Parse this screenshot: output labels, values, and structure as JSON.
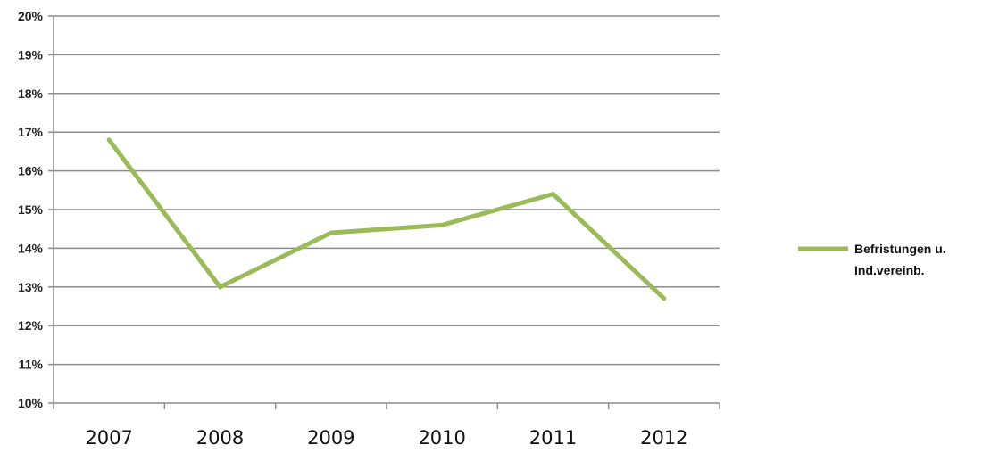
{
  "chart_data": {
    "type": "line",
    "title": "",
    "xlabel": "",
    "ylabel": "",
    "categories": [
      "2007",
      "2008",
      "2009",
      "2010",
      "2011",
      "2012"
    ],
    "series": [
      {
        "name": "Befristungen u. Ind.vereinb.",
        "legend_lines": [
          "Befristungen u.",
          "Ind.vereinb."
        ],
        "values": [
          16.8,
          13.0,
          14.4,
          14.6,
          15.4,
          12.7
        ],
        "color": "#9bbb59"
      }
    ],
    "ylim": [
      10,
      20
    ],
    "yticks": [
      10,
      11,
      12,
      13,
      14,
      15,
      16,
      17,
      18,
      19,
      20
    ],
    "ytick_labels": [
      "10%",
      "11%",
      "12%",
      "13%",
      "14%",
      "15%",
      "16%",
      "17%",
      "18%",
      "19%",
      "20%"
    ],
    "grid": true,
    "legend_position": "right"
  }
}
